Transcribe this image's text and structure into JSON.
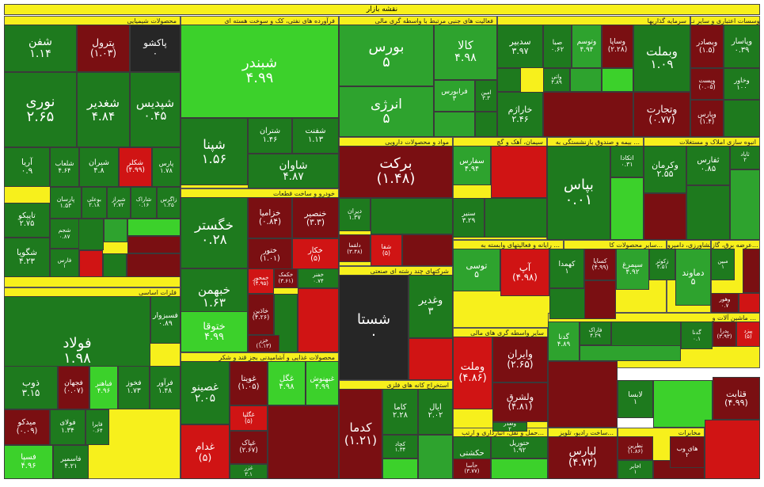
{
  "title": "نقشه بازار",
  "sectors": [
    {
      "id": "s1",
      "title": "بانک ها، موسسات اعتباری و سایر نـ..."
    },
    {
      "id": "s2",
      "title": "سرمایه گذاریها"
    },
    {
      "id": "s3",
      "title": "فعالیت های جنبی مرتبط با واسطه گری مالی"
    },
    {
      "id": "s4",
      "title": "فرآورده های نفتی، کک و سوخت هسته ای"
    },
    {
      "id": "s5",
      "title": "محصولات شیمیایی"
    },
    {
      "id": "s6",
      "title": "انبوه سازی املاک و مستغلات"
    },
    {
      "id": "s7",
      "title": "بیمه و صندوق بازنشستگی به ..."
    },
    {
      "id": "s8",
      "title": "سیمان، آهک و گچ"
    },
    {
      "id": "s9",
      "title": "مواد و محصولات دارویی"
    },
    {
      "id": "s10",
      "title": "خودرو و ساخت قطعات"
    },
    {
      "id": "s11",
      "title": "فلزات اساسی"
    },
    {
      "id": "s12",
      "title": "شرکتهای چند رشته ای صنعتی"
    },
    {
      "id": "s13",
      "title": "عرضه برق، گاز..."
    },
    {
      "id": "s14",
      "title": "رایانه و فعالیتهای وابسته به ..."
    },
    {
      "id": "s15",
      "title": "سایر محصولات کا..."
    },
    {
      "id": "s16",
      "title": "کشاورزی، دامپرو..."
    },
    {
      "id": "s17",
      "title": "محصولات غذایی و آشامیدنی بجز قند و شکر"
    },
    {
      "id": "s18",
      "title": "سایر واسطه گری های مالی"
    },
    {
      "id": "s19",
      "title": "ماشین آلات و ..."
    },
    {
      "id": "s20",
      "title": "استخراج کانه های فلزی"
    },
    {
      "id": "s21",
      "title": "مخابرات"
    },
    {
      "id": "s22",
      "title": "ساخت رادیو، تلویز..."
    },
    {
      "id": "s23",
      "title": "حمل و نقل، انبارداری و ارتب..."
    }
  ],
  "tiles": [
    {
      "n": "شفن",
      "v": "۱.۱۴",
      "c": "g1"
    },
    {
      "n": "پترول",
      "v": "(۱.۰۳)",
      "c": "r1"
    },
    {
      "n": "پاکشو",
      "v": "۰",
      "c": "n"
    },
    {
      "n": "نوری",
      "v": "۲.۶۵",
      "c": "g1"
    },
    {
      "n": "شغدیر",
      "v": "۴.۸۴",
      "c": "g1"
    },
    {
      "n": "شپدیس",
      "v": "۰.۴۵",
      "c": "g1"
    },
    {
      "n": "آریا",
      "v": "۰.۹",
      "c": "g1"
    },
    {
      "n": "شلعاب",
      "v": "۴.۶۴",
      "c": "g1"
    },
    {
      "n": "شیران",
      "v": "۴.۸",
      "c": "g1"
    },
    {
      "n": "شکلر",
      "v": "(۴.۹۹)",
      "c": "r2"
    },
    {
      "n": "پارس",
      "v": "۱.۷۸",
      "c": "g1"
    },
    {
      "n": "پارسان",
      "v": "۱.۵۳",
      "c": "g1"
    },
    {
      "n": "بوعلی",
      "v": "۲.۱۸",
      "c": "g1"
    },
    {
      "n": "شیراز",
      "v": "۲.۷۲",
      "c": "g1"
    },
    {
      "n": "شاراک",
      "v": "۰.۱۶",
      "c": "g1"
    },
    {
      "n": "زاگرس",
      "v": "۱.۲۵",
      "c": "g1"
    },
    {
      "n": "تاپیکو",
      "v": "۲.۷۵",
      "c": "g1"
    },
    {
      "n": "شجم",
      "v": "۰.۸۷",
      "c": "g1"
    },
    {
      "n": "شگویا",
      "v": "۴.۲۳",
      "c": "g1"
    },
    {
      "n": "فارس",
      "v": "۱",
      "c": "g1"
    },
    {
      "n": "فولاد",
      "v": "۱.۹۸",
      "c": "g1"
    },
    {
      "n": "فسبزوار",
      "v": "۰.۸۹",
      "c": "g1"
    },
    {
      "n": "ذوب",
      "v": "۳.۱۵",
      "c": "g1"
    },
    {
      "n": "فجهان",
      "v": "(۰.۰۷)",
      "c": "r1"
    },
    {
      "n": "فباهنر",
      "v": "۴.۹۶",
      "c": "g3"
    },
    {
      "n": "فخوز",
      "v": "۱.۷۳",
      "c": "g1"
    },
    {
      "n": "فرآور",
      "v": "۱.۴۸",
      "c": "g1"
    },
    {
      "n": "میدکو",
      "v": "(۰.۰۹)",
      "c": "r1"
    },
    {
      "n": "فولای",
      "v": "۱.۳۴",
      "c": "g1"
    },
    {
      "n": "فایرا",
      "v": "۰.۶۴",
      "c": "g1"
    },
    {
      "n": "فسپا",
      "v": "۴.۹۶",
      "c": "g3"
    },
    {
      "n": "فاسمیر",
      "v": "۴.۲۱",
      "c": "g1"
    },
    {
      "n": "شبندر",
      "v": "۴.۹۹",
      "c": "g3"
    },
    {
      "n": "شپنا",
      "v": "۱.۵۶",
      "c": "g1"
    },
    {
      "n": "شتران",
      "v": "۱.۴۶",
      "c": "g1"
    },
    {
      "n": "شفنت",
      "v": "۱.۱۳",
      "c": "g1"
    },
    {
      "n": "شاوان",
      "v": "۴.۸۷",
      "c": "g1"
    },
    {
      "n": "خگستر",
      "v": "۰.۲۸",
      "c": "g1"
    },
    {
      "n": "خزامیا",
      "v": "(۰.۸۴)",
      "c": "r1"
    },
    {
      "n": "خنصیر",
      "v": "(۳.۳)",
      "c": "r1"
    },
    {
      "n": "خکار",
      "v": "(۵)",
      "c": "r2"
    },
    {
      "n": "ختور",
      "v": "(۱.۰۱)",
      "c": "r1"
    },
    {
      "n": "خبهمن",
      "v": "۱.۶۳",
      "c": "g1"
    },
    {
      "n": "خمحور",
      "v": "(۴.۹۵)",
      "c": "r2"
    },
    {
      "n": "خکمک",
      "v": "(۳.۶۱)",
      "c": "r1"
    },
    {
      "n": "خفنر",
      "v": "۰.۷۴",
      "c": "g1"
    },
    {
      "n": "ختوقا",
      "v": "۴.۹۹",
      "c": "g3"
    },
    {
      "n": "خاذین",
      "v": "(۴.۲۶)",
      "c": "r1"
    },
    {
      "n": "خزر",
      "v": "(۱.۱۳)",
      "c": "r1"
    },
    {
      "n": "غصینو",
      "v": "۲.۰۵",
      "c": "g1"
    },
    {
      "n": "غویتا",
      "v": "(۱.۰۵)",
      "c": "r1"
    },
    {
      "n": "غگل",
      "v": "۴.۹۸",
      "c": "g3"
    },
    {
      "n": "غبهنوش",
      "v": "۴.۹۹",
      "c": "g3"
    },
    {
      "n": "غگلپا",
      "v": "(۵)",
      "c": "r2"
    },
    {
      "n": "غدام",
      "v": "(۵)",
      "c": "r2"
    },
    {
      "n": "غپاک",
      "v": "(۲.۶۷)",
      "c": "r1"
    },
    {
      "n": "غزر",
      "v": "۳.۱",
      "c": "g1"
    },
    {
      "n": "بورس",
      "v": "۵",
      "c": "g2"
    },
    {
      "n": "کالا",
      "v": "۴.۹۸",
      "c": "g2"
    },
    {
      "n": "انرژی",
      "v": "۵",
      "c": "g2"
    },
    {
      "n": "فرابورس",
      "v": "۳",
      "c": "g2"
    },
    {
      "n": "امین",
      "v": "۳.۳",
      "c": "g1"
    },
    {
      "n": "برکت",
      "v": "(۱.۴۸)",
      "c": "r1"
    },
    {
      "n": "دیران",
      "v": "۱.۳۷",
      "c": "g1"
    },
    {
      "n": "دلقما",
      "v": "(۳.۴۸)",
      "c": "r1"
    },
    {
      "n": "شفا",
      "v": "(۵)",
      "c": "r2"
    },
    {
      "n": "شستا",
      "v": "۰",
      "c": "n"
    },
    {
      "n": "وغدیر",
      "v": "۳",
      "c": "g1"
    },
    {
      "n": "کدما",
      "v": "(۱.۲۱)",
      "c": "r1"
    },
    {
      "n": "کاما",
      "v": "۲.۲۸",
      "c": "g1"
    },
    {
      "n": "ایال",
      "v": "۲.۰۲",
      "c": "g1"
    },
    {
      "n": "کچاد",
      "v": "۱.۳۴",
      "c": "g1"
    },
    {
      "n": "سدبیر",
      "v": "۳.۹۷",
      "c": "g1"
    },
    {
      "n": "صبا",
      "v": "۰.۶۲",
      "c": "g1"
    },
    {
      "n": "وتوسم",
      "v": "۴.۹۴",
      "c": "g2"
    },
    {
      "n": "وساپا",
      "v": "(۲.۲۸)",
      "c": "r1"
    },
    {
      "n": "وبملت",
      "v": "۱.۰۹",
      "c": "g1"
    },
    {
      "n": "وبصادر",
      "v": "(۱.۵)",
      "c": "r1"
    },
    {
      "n": "وپاسار",
      "v": "۰.۳۹",
      "c": "g1"
    },
    {
      "n": "واتی",
      "v": "۴.۸۹",
      "c": "g1"
    },
    {
      "n": "خاراژم",
      "v": "۲.۴۶",
      "c": "g1"
    },
    {
      "n": "وتجارت",
      "v": "(۰.۷۷)",
      "c": "r1"
    },
    {
      "n": "وپست",
      "v": "(۰.۰۵)",
      "c": "r1"
    },
    {
      "n": "وخاور",
      "v": "۱۰۰",
      "c": "g1"
    },
    {
      "n": "وپارس",
      "v": "(۱.۴)",
      "c": "r1"
    },
    {
      "n": "بپاس",
      "v": "۰.۰۱",
      "c": "g1"
    },
    {
      "n": "اتکادا",
      "v": "۰.۳۱",
      "c": "g1"
    },
    {
      "n": "وکرمان",
      "v": "۲.۵۵",
      "c": "g1"
    },
    {
      "n": "ثفارس",
      "v": "۰.۸۵",
      "c": "g1"
    },
    {
      "n": "ثاباد",
      "v": "۲",
      "c": "g1"
    },
    {
      "n": "سفارس",
      "v": "۴.۹۴",
      "c": "g2"
    },
    {
      "n": "سنیر",
      "v": "۳.۲۹",
      "c": "g1"
    },
    {
      "n": "توسی",
      "v": "۵",
      "c": "g2"
    },
    {
      "n": "آپ",
      "v": "(۴.۹۸)",
      "c": "r2"
    },
    {
      "n": "کهمدا",
      "v": "۱",
      "c": "g1"
    },
    {
      "n": "کساپا",
      "v": "(۴.۹۹)",
      "c": "r1"
    },
    {
      "n": "سیمرغ",
      "v": "۴.۹۲",
      "c": "g2"
    },
    {
      "n": "زکوثر",
      "v": "۳.۵۱",
      "c": "g1"
    },
    {
      "n": "دماوند",
      "v": "۵",
      "c": "g2"
    },
    {
      "n": "مبین",
      "v": "۱",
      "c": "g1"
    },
    {
      "n": "وهور",
      "v": "۰.۷",
      "c": "r1"
    },
    {
      "n": "وملت",
      "v": "(۴.۸۶)",
      "c": "r2"
    },
    {
      "n": "وایران",
      "v": "(۲.۶۵)",
      "c": "r1"
    },
    {
      "n": "ولشرق",
      "v": "(۴.۸۱)",
      "c": "r1"
    },
    {
      "n": "ولغدر",
      "v": "۲",
      "c": "g1"
    },
    {
      "n": "گدنا",
      "v": "۴.۸۹",
      "c": "g2"
    },
    {
      "n": "فاراک",
      "v": "۴.۲۹",
      "c": "g1"
    },
    {
      "n": "گدنا",
      "v": "۰.۱",
      "c": "g1"
    },
    {
      "n": "پدرا",
      "v": "(۳.۹۳)",
      "c": "r1"
    },
    {
      "n": "پیزد",
      "v": "(۵)",
      "c": "r2"
    },
    {
      "n": "حکشتی",
      "v": "۳.۴",
      "c": "g1"
    },
    {
      "n": "حتوریل",
      "v": "۱.۹۲",
      "c": "g1"
    },
    {
      "n": "حآسا",
      "v": "(۳.۷۷)",
      "c": "r1"
    },
    {
      "n": "لپارس",
      "v": "(۴.۷۲)",
      "c": "r1"
    },
    {
      "n": "لابسا",
      "v": "۱",
      "c": "g1"
    },
    {
      "n": "قثابت",
      "v": "(۴.۹۹)",
      "c": "r1"
    },
    {
      "n": "نطرین",
      "v": "(۱.۸۶)",
      "c": "r1"
    },
    {
      "n": "اخابر",
      "v": "۱",
      "c": "g1"
    },
    {
      "n": "های وب",
      "v": "۲",
      "c": "r1"
    },
    {
      "n": "ثنوسا",
      "v": "۱",
      "c": "g1"
    }
  ]
}
